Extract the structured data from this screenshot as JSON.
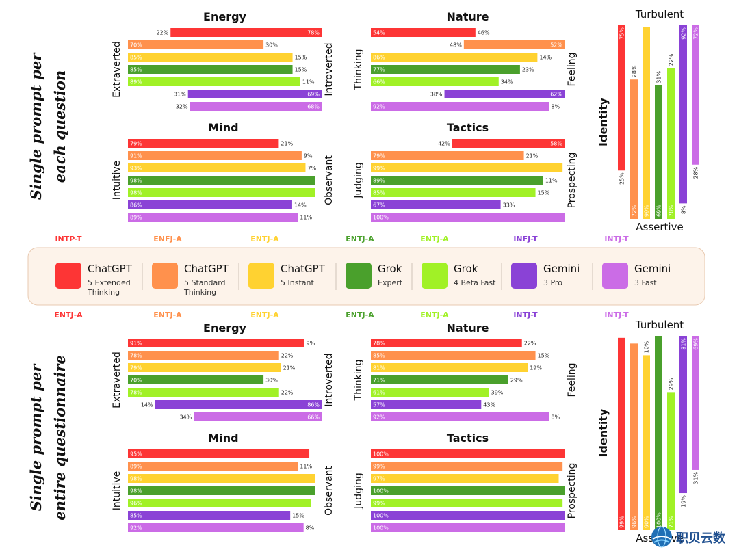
{
  "colors": [
    "#fd3535",
    "#ff914d",
    "#ffd231",
    "#4aa02c",
    "#a1f126",
    "#8a42d6",
    "#cb6ce6"
  ],
  "chart_data": [
    {
      "type": "bar",
      "title": "Energy",
      "section": "Single prompt per each question",
      "left_label": "Extraverted",
      "right_label": "Introverted",
      "categories": [
        "ChatGPT 5 Extended Thinking",
        "ChatGPT 5 Standard Thinking",
        "ChatGPT 5 Instant",
        "Grok Expert",
        "Grok 4 Beta Fast",
        "Gemini 3 Pro",
        "Gemini 3 Fast"
      ],
      "series": [
        {
          "name": "Extraverted",
          "values": [
            22,
            70,
            85,
            85,
            89,
            31,
            32
          ]
        },
        {
          "name": "Introverted",
          "values": [
            78,
            30,
            15,
            15,
            11,
            69,
            68
          ]
        }
      ],
      "ylim": [
        0,
        100
      ]
    },
    {
      "type": "bar",
      "title": "Nature",
      "section": "Single prompt per each question",
      "left_label": "Thinking",
      "right_label": "Feeling",
      "categories": [
        "ChatGPT 5 Extended Thinking",
        "ChatGPT 5 Standard Thinking",
        "ChatGPT 5 Instant",
        "Grok Expert",
        "Grok 4 Beta Fast",
        "Gemini 3 Pro",
        "Gemini 3 Fast"
      ],
      "series": [
        {
          "name": "Thinking",
          "values": [
            54,
            48,
            86,
            77,
            66,
            38,
            92
          ]
        },
        {
          "name": "Feeling",
          "values": [
            46,
            52,
            14,
            23,
            34,
            62,
            8
          ]
        }
      ],
      "ylim": [
        0,
        100
      ]
    },
    {
      "type": "bar",
      "title": "Mind",
      "section": "Single prompt per each question",
      "left_label": "Intuitive",
      "right_label": "Observant",
      "categories": [
        "ChatGPT 5 Extended Thinking",
        "ChatGPT 5 Standard Thinking",
        "ChatGPT 5 Instant",
        "Grok Expert",
        "Grok 4 Beta Fast",
        "Gemini 3 Pro",
        "Gemini 3 Fast"
      ],
      "series": [
        {
          "name": "Intuitive",
          "values": [
            79,
            91,
            93,
            98,
            98,
            86,
            89
          ]
        },
        {
          "name": "Observant",
          "values": [
            21,
            9,
            7,
            null,
            null,
            14,
            11
          ]
        }
      ],
      "ylim": [
        0,
        100
      ]
    },
    {
      "type": "bar",
      "title": "Tactics",
      "section": "Single prompt per each question",
      "left_label": "Judging",
      "right_label": "Prospecting",
      "categories": [
        "ChatGPT 5 Extended Thinking",
        "ChatGPT 5 Standard Thinking",
        "ChatGPT 5 Instant",
        "Grok Expert",
        "Grok 4 Beta Fast",
        "Gemini 3 Pro",
        "Gemini 3 Fast"
      ],
      "series": [
        {
          "name": "Judging",
          "values": [
            42,
            79,
            99,
            89,
            85,
            67,
            100
          ]
        },
        {
          "name": "Prospecting",
          "values": [
            58,
            21,
            null,
            11,
            15,
            33,
            null
          ]
        }
      ],
      "ylim": [
        0,
        100
      ]
    },
    {
      "type": "bar",
      "title": "Identity",
      "section": "Single prompt per each question",
      "top_label": "Turbulent",
      "bottom_label": "Assertive",
      "categories": [
        "ChatGPT 5 Extended Thinking",
        "ChatGPT 5 Standard Thinking",
        "ChatGPT 5 Instant",
        "Grok Expert",
        "Grok 4 Beta Fast",
        "Gemini 3 Pro",
        "Gemini 3 Fast"
      ],
      "series": [
        {
          "name": "Turbulent",
          "values": [
            75,
            28,
            null,
            31,
            22,
            92,
            72
          ]
        },
        {
          "name": "Assertive",
          "values": [
            25,
            72,
            99,
            69,
            78,
            8,
            28
          ]
        }
      ],
      "ylim": [
        0,
        100
      ]
    },
    {
      "type": "bar",
      "title": "Energy",
      "section": "Single prompt per entire questionnaire",
      "left_label": "Extraverted",
      "right_label": "Introverted",
      "categories": [
        "ChatGPT 5 Extended Thinking",
        "ChatGPT 5 Standard Thinking",
        "ChatGPT 5 Instant",
        "Grok Expert",
        "Grok 4 Beta Fast",
        "Gemini 3 Pro",
        "Gemini 3 Fast"
      ],
      "series": [
        {
          "name": "Extraverted",
          "values": [
            91,
            78,
            79,
            70,
            78,
            14,
            34
          ]
        },
        {
          "name": "Introverted",
          "values": [
            9,
            22,
            21,
            30,
            22,
            86,
            66
          ]
        }
      ],
      "ylim": [
        0,
        100
      ]
    },
    {
      "type": "bar",
      "title": "Nature",
      "section": "Single prompt per entire questionnaire",
      "left_label": "Thinking",
      "right_label": "Feeling",
      "categories": [
        "ChatGPT 5 Extended Thinking",
        "ChatGPT 5 Standard Thinking",
        "ChatGPT 5 Instant",
        "Grok Expert",
        "Grok 4 Beta Fast",
        "Gemini 3 Pro",
        "Gemini 3 Fast"
      ],
      "series": [
        {
          "name": "Thinking",
          "values": [
            78,
            85,
            81,
            71,
            61,
            57,
            92
          ]
        },
        {
          "name": "Feeling",
          "values": [
            22,
            15,
            19,
            29,
            39,
            43,
            8
          ]
        }
      ],
      "ylim": [
        0,
        100
      ]
    },
    {
      "type": "bar",
      "title": "Mind",
      "section": "Single prompt per entire questionnaire",
      "left_label": "Intuitive",
      "right_label": "Observant",
      "categories": [
        "ChatGPT 5 Extended Thinking",
        "ChatGPT 5 Standard Thinking",
        "ChatGPT 5 Instant",
        "Grok Expert",
        "Grok 4 Beta Fast",
        "Gemini 3 Pro",
        "Gemini 3 Fast"
      ],
      "series": [
        {
          "name": "Intuitive",
          "values": [
            95,
            89,
            98,
            98,
            96,
            85,
            92
          ]
        },
        {
          "name": "Observant",
          "values": [
            null,
            11,
            null,
            null,
            null,
            15,
            8
          ]
        }
      ],
      "ylim": [
        0,
        100
      ]
    },
    {
      "type": "bar",
      "title": "Tactics",
      "section": "Single prompt per entire questionnaire",
      "left_label": "Judging",
      "right_label": "Prospecting",
      "categories": [
        "ChatGPT 5 Extended Thinking",
        "ChatGPT 5 Standard Thinking",
        "ChatGPT 5 Instant",
        "Grok Expert",
        "Grok 4 Beta Fast",
        "Gemini 3 Pro",
        "Gemini 3 Fast"
      ],
      "series": [
        {
          "name": "Judging",
          "values": [
            100,
            99,
            97,
            100,
            99,
            100,
            100
          ]
        },
        {
          "name": "Prospecting",
          "values": [
            null,
            null,
            null,
            null,
            null,
            null,
            null
          ]
        }
      ],
      "ylim": [
        0,
        100
      ]
    },
    {
      "type": "bar",
      "title": "Identity",
      "section": "Single prompt per entire questionnaire",
      "top_label": "Turbulent",
      "bottom_label": "Assertive",
      "categories": [
        "ChatGPT 5 Extended Thinking",
        "ChatGPT 5 Standard Thinking",
        "ChatGPT 5 Instant",
        "Grok Expert",
        "Grok 4 Beta Fast",
        "Gemini 3 Pro",
        "Gemini 3 Fast"
      ],
      "series": [
        {
          "name": "Turbulent",
          "values": [
            null,
            null,
            10,
            null,
            29,
            81,
            69
          ]
        },
        {
          "name": "Assertive",
          "values": [
            99,
            96,
            90,
            100,
            71,
            19,
            31
          ]
        }
      ],
      "ylim": [
        0,
        100
      ]
    }
  ],
  "row_titles": [
    {
      "line1": "Single prompt per",
      "line2": "each question"
    },
    {
      "line1": "Single prompt per",
      "line2": "entire questionnaire"
    }
  ],
  "types_top": [
    "INTP-T",
    "ENFJ-A",
    "ENTJ-A",
    "ENTJ-A",
    "ENTJ-A",
    "INFJ-T",
    "INTJ-T"
  ],
  "types_bottom": [
    "ENTJ-A",
    "ENTJ-A",
    "ENTJ-A",
    "ENTJ-A",
    "ENTJ-A",
    "INTJ-T",
    "INTJ-T"
  ],
  "legend": [
    {
      "name": "ChatGPT",
      "sub1": "5 Extended",
      "sub2": "Thinking"
    },
    {
      "name": "ChatGPT",
      "sub1": "5 Standard",
      "sub2": "Thinking"
    },
    {
      "name": "ChatGPT",
      "sub1": "5 Instant",
      "sub2": ""
    },
    {
      "name": "Grok",
      "sub1": "Expert",
      "sub2": ""
    },
    {
      "name": "Grok",
      "sub1": "4 Beta Fast",
      "sub2": ""
    },
    {
      "name": "Gemini",
      "sub1": "3 Pro",
      "sub2": ""
    },
    {
      "name": "Gemini",
      "sub1": "3 Fast",
      "sub2": ""
    }
  ],
  "watermark": {
    "text": "职贝云数"
  }
}
